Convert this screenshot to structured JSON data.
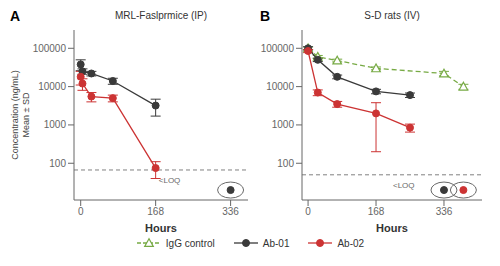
{
  "chart_data": [
    {
      "type": "line",
      "title": "MRL-Faslprmice (IP)",
      "xlabel": "Hours",
      "ylabel": "Concentration (ng/mL)\nMean ± SD",
      "log": "y",
      "xlim": [
        -15,
        375
      ],
      "ylim": [
        11,
        300000
      ],
      "xticks": [
        0,
        168,
        336
      ],
      "yticks": [
        100,
        1000,
        10000,
        100000
      ],
      "grid": false,
      "loq_line": 66.8,
      "annotations": [
        {
          "text": "A"
        },
        {
          "text": "<LOQ",
          "x": 175,
          "y": 36
        }
      ],
      "series": [
        {
          "name": "Ab-01",
          "type": "line",
          "color": "#3a3a3a",
          "marker": "circle",
          "line_style": "solid",
          "x": [
            0,
            4,
            24,
            72,
            168
          ],
          "values": [
            38000,
            25000,
            22000,
            14000,
            3200
          ],
          "error": [
            12000,
            4000,
            3000,
            2500,
            1500
          ]
        },
        {
          "name": "Ab-02",
          "type": "line",
          "color": "#cc3333",
          "marker": "circle",
          "line_style": "solid",
          "x": [
            0,
            4,
            24,
            72,
            168
          ],
          "values": [
            18000,
            12000,
            5500,
            5000,
            75
          ],
          "error": [
            7000,
            4000,
            1500,
            1000,
            35
          ]
        },
        {
          "name": "Ab-01",
          "type": "scatter",
          "color": "#3a3a3a",
          "marker": "circle",
          "x": [
            336
          ],
          "values": [
            20
          ]
        }
      ]
    },
    {
      "type": "line",
      "title": "S-D rats (IV)",
      "xlabel": "Hours",
      "log": "y",
      "xlim": [
        -15,
        430
      ],
      "ylim": [
        11,
        300000
      ],
      "xticks": [
        0,
        168,
        336
      ],
      "yticks": [
        100,
        1000,
        10000,
        100000
      ],
      "grid": false,
      "loq_line": 50,
      "legend": "bottom",
      "annotations": [
        {
          "text": "B"
        },
        {
          "text": "<LOQ",
          "x": 210,
          "y": 27
        }
      ],
      "series": [
        {
          "name": "IgG control",
          "type": "line",
          "color": "#77aa44",
          "marker": "triangle",
          "line_style": "dashed",
          "x": [
            0,
            24,
            72,
            168,
            336,
            384
          ],
          "values": [
            100000,
            60000,
            48000,
            30000,
            22000,
            10000
          ],
          "error": [
            8000,
            5000,
            4000,
            2500,
            3000,
            1500
          ]
        },
        {
          "name": "Ab-01",
          "type": "line",
          "color": "#3a3a3a",
          "marker": "circle",
          "line_style": "solid",
          "x": [
            0,
            24,
            72,
            168,
            252
          ],
          "values": [
            100000,
            50000,
            18000,
            7500,
            6000
          ],
          "error": [
            10000,
            5000,
            2000,
            1000,
            800
          ]
        },
        {
          "name": "Ab-02",
          "type": "line",
          "color": "#cc3333",
          "marker": "circle",
          "line_style": "solid",
          "x": [
            0,
            24,
            72,
            168,
            252
          ],
          "values": [
            85000,
            7000,
            3500,
            2000,
            850
          ],
          "error": [
            8000,
            1200,
            600,
            1800,
            200
          ]
        },
        {
          "name": "Ab-01",
          "type": "scatter",
          "color": "#3a3a3a",
          "marker": "circle",
          "x": [
            336
          ],
          "values": [
            20
          ]
        },
        {
          "name": "Ab-02",
          "type": "scatter",
          "color": "#cc3333",
          "marker": "circle",
          "x": [
            384
          ],
          "values": [
            20
          ]
        }
      ]
    }
  ]
}
